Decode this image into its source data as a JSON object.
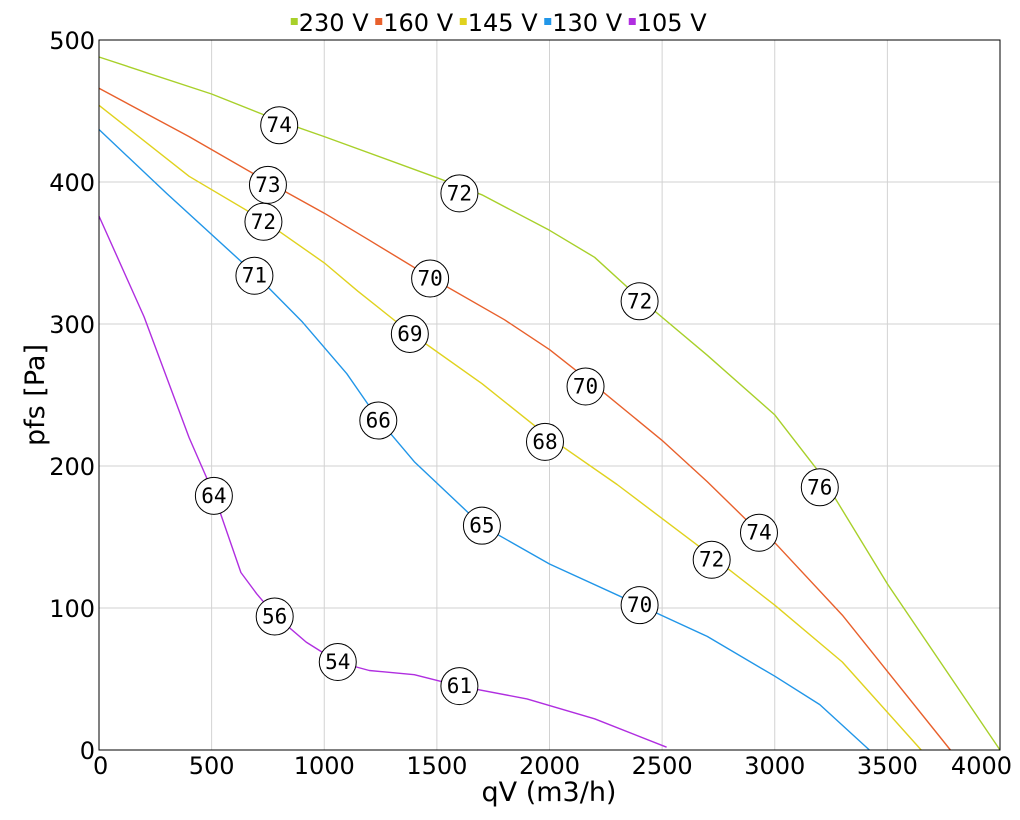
{
  "chart_data": {
    "type": "line",
    "title": "",
    "xlabel": "qV (m3/h)",
    "ylabel": "pfs [Pa]",
    "xlim": [
      0,
      4000
    ],
    "ylim": [
      0,
      500
    ],
    "xticks": [
      0,
      500,
      1000,
      1500,
      2000,
      2500,
      3000,
      3500,
      4000
    ],
    "yticks": [
      0,
      100,
      200,
      300,
      400,
      500
    ],
    "grid": true,
    "legend_position": "top-center",
    "series": [
      {
        "name": "230 V",
        "color": "#a8d02a",
        "points": [
          [
            0,
            488
          ],
          [
            500,
            462
          ],
          [
            800,
            443
          ],
          [
            1000,
            432
          ],
          [
            1500,
            403
          ],
          [
            1700,
            391
          ],
          [
            2000,
            366
          ],
          [
            2200,
            347
          ],
          [
            2400,
            318
          ],
          [
            2700,
            278
          ],
          [
            3000,
            236
          ],
          [
            3200,
            195
          ],
          [
            3500,
            117
          ],
          [
            4000,
            0
          ]
        ],
        "markers": [
          {
            "x": 800,
            "y": 440,
            "label": "74"
          },
          {
            "x": 1600,
            "y": 392,
            "label": "72"
          },
          {
            "x": 2400,
            "y": 316,
            "label": "72"
          },
          {
            "x": 3200,
            "y": 185,
            "label": "76"
          }
        ]
      },
      {
        "name": "160 V",
        "color": "#e8602c",
        "points": [
          [
            0,
            466
          ],
          [
            400,
            432
          ],
          [
            750,
            400
          ],
          [
            1000,
            378
          ],
          [
            1200,
            359
          ],
          [
            1470,
            333
          ],
          [
            1800,
            303
          ],
          [
            2000,
            282
          ],
          [
            2200,
            257
          ],
          [
            2500,
            218
          ],
          [
            2700,
            189
          ],
          [
            2900,
            158
          ],
          [
            3000,
            146
          ],
          [
            3300,
            95
          ],
          [
            3780,
            0
          ]
        ],
        "markers": [
          {
            "x": 750,
            "y": 398,
            "label": "73"
          },
          {
            "x": 1470,
            "y": 332,
            "label": "70"
          },
          {
            "x": 2160,
            "y": 256,
            "label": "70"
          },
          {
            "x": 2930,
            "y": 153,
            "label": "74"
          }
        ]
      },
      {
        "name": "145 V",
        "color": "#e0d21e",
        "points": [
          [
            0,
            454
          ],
          [
            400,
            404
          ],
          [
            730,
            373
          ],
          [
            1000,
            343
          ],
          [
            1150,
            323
          ],
          [
            1380,
            294
          ],
          [
            1700,
            258
          ],
          [
            2000,
            220
          ],
          [
            2300,
            187
          ],
          [
            2700,
            139
          ],
          [
            3000,
            102
          ],
          [
            3300,
            62
          ],
          [
            3650,
            0
          ]
        ],
        "markers": [
          {
            "x": 730,
            "y": 372,
            "label": "72"
          },
          {
            "x": 1380,
            "y": 293,
            "label": "69"
          },
          {
            "x": 1980,
            "y": 217,
            "label": "68"
          },
          {
            "x": 2720,
            "y": 134,
            "label": "72"
          }
        ]
      },
      {
        "name": "130 V",
        "color": "#2196e8",
        "points": [
          [
            0,
            437
          ],
          [
            300,
            392
          ],
          [
            700,
            334
          ],
          [
            900,
            302
          ],
          [
            1100,
            265
          ],
          [
            1240,
            233
          ],
          [
            1400,
            203
          ],
          [
            1700,
            158
          ],
          [
            2000,
            131
          ],
          [
            2400,
            102
          ],
          [
            2700,
            80
          ],
          [
            3000,
            52
          ],
          [
            3200,
            32
          ],
          [
            3420,
            0
          ]
        ],
        "markers": [
          {
            "x": 690,
            "y": 334,
            "label": "71"
          },
          {
            "x": 1240,
            "y": 232,
            "label": "66"
          },
          {
            "x": 1700,
            "y": 158,
            "label": "65"
          },
          {
            "x": 2400,
            "y": 102,
            "label": "70"
          }
        ]
      },
      {
        "name": "105 V",
        "color": "#b02ee0",
        "points": [
          [
            0,
            376
          ],
          [
            200,
            305
          ],
          [
            400,
            220
          ],
          [
            510,
            180
          ],
          [
            630,
            125
          ],
          [
            700,
            110
          ],
          [
            780,
            95
          ],
          [
            920,
            76
          ],
          [
            1060,
            62
          ],
          [
            1200,
            56
          ],
          [
            1400,
            53
          ],
          [
            1600,
            45
          ],
          [
            1900,
            36
          ],
          [
            2200,
            22
          ],
          [
            2520,
            2
          ]
        ],
        "markers": [
          {
            "x": 510,
            "y": 179,
            "label": "64"
          },
          {
            "x": 780,
            "y": 94,
            "label": "56"
          },
          {
            "x": 1060,
            "y": 62,
            "label": "54"
          },
          {
            "x": 1600,
            "y": 45,
            "label": "61"
          }
        ]
      }
    ]
  }
}
